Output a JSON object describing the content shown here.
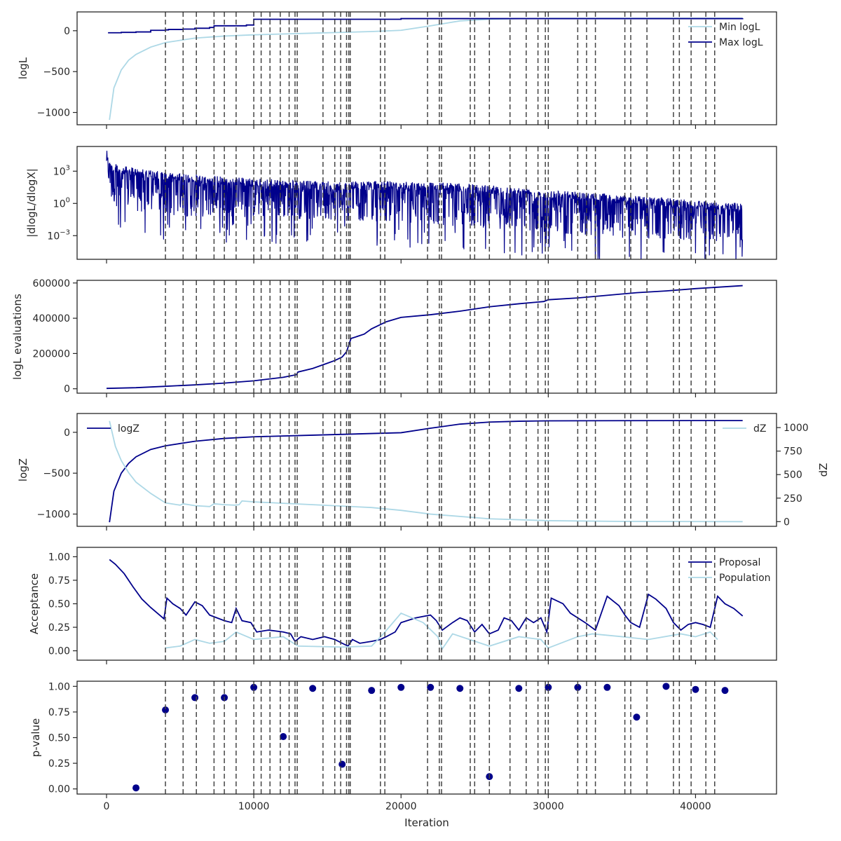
{
  "figure": {
    "xlabel": "Iteration"
  },
  "colors": {
    "dark": "#00008b",
    "light": "#add8e6",
    "dashed": "#444444",
    "axis": "#262626"
  },
  "chart_data": [
    {
      "type": "line",
      "panel": "logL",
      "ylabel": "logL",
      "xlim": [
        -2000,
        45500
      ],
      "ylim": [
        -1150,
        230
      ],
      "x_ticks": [
        0,
        10000,
        20000,
        30000,
        40000
      ],
      "y_ticks": [
        {
          "value": 0,
          "label": "0"
        },
        {
          "value": -500,
          "label": "−500"
        },
        {
          "value": -1000,
          "label": "−1000"
        }
      ],
      "legend": "top-right",
      "series": [
        {
          "name": "Min logL",
          "color": "light",
          "x": [
            200,
            500,
            1000,
            1500,
            2000,
            3000,
            4000,
            6000,
            8000,
            10000,
            14000,
            18000,
            20000,
            22000,
            24000,
            26000,
            28000,
            30000,
            35000,
            40000,
            43200
          ],
          "y": [
            -1090,
            -700,
            -480,
            -360,
            -290,
            -200,
            -145,
            -90,
            -65,
            -50,
            -30,
            -10,
            5,
            60,
            120,
            140,
            148,
            150,
            152,
            153,
            153
          ]
        },
        {
          "name": "Max logL",
          "color": "dark",
          "step": true,
          "x": [
            100,
            1000,
            2000,
            3000,
            4000,
            4200,
            5200,
            6000,
            7000,
            7300,
            9500,
            10000,
            20000,
            43200
          ],
          "y": [
            -25,
            -20,
            -15,
            5,
            10,
            15,
            20,
            30,
            40,
            60,
            70,
            140,
            148,
            153
          ]
        }
      ]
    },
    {
      "type": "line",
      "panel": "dlogL",
      "ylabel": "|dlogL/dlogX|",
      "yscale": "log",
      "xlim": [
        -2000,
        45500
      ],
      "ylim": [
        -5.2,
        5.3
      ],
      "x_ticks": [
        0,
        10000,
        20000,
        30000,
        40000
      ],
      "y_ticks": [
        {
          "value": 3,
          "label": "10",
          "exp": "3"
        },
        {
          "value": 0,
          "label": "10",
          "exp": "0"
        },
        {
          "value": -3,
          "label": "10",
          "exp": "−3"
        }
      ],
      "series": [
        {
          "name": "",
          "color": "dark",
          "noisy": true,
          "x": [
            0,
            300,
            1000,
            2000,
            4000,
            8000,
            12000,
            16000,
            19000,
            20000,
            22000,
            26000,
            30000,
            34000,
            38000,
            43200
          ],
          "y_upper": [
            5.0,
            3.8,
            3.5,
            3.3,
            2.9,
            2.5,
            2.2,
            2.0,
            2.1,
            2.1,
            2.0,
            1.7,
            1.3,
            0.9,
            0.5,
            0.0
          ],
          "y_lower": [
            3.5,
            0.0,
            -0.5,
            -0.8,
            -1.2,
            -1.3,
            -1.4,
            -1.6,
            -1.7,
            -1.8,
            -2.0,
            -2.3,
            -2.7,
            -3.1,
            -3.5,
            -3.5
          ]
        }
      ]
    },
    {
      "type": "line",
      "panel": "evaluations",
      "ylabel": "logL evaluations",
      "xlim": [
        -2000,
        45500
      ],
      "ylim": [
        -25000,
        615000
      ],
      "x_ticks": [
        0,
        10000,
        20000,
        30000,
        40000
      ],
      "y_ticks": [
        {
          "value": 600000,
          "label": "600000"
        },
        {
          "value": 400000,
          "label": "400000"
        },
        {
          "value": 200000,
          "label": "200000"
        },
        {
          "value": 0,
          "label": "0"
        }
      ],
      "series": [
        {
          "name": "",
          "color": "dark",
          "x": [
            0,
            2000,
            4000,
            6000,
            8000,
            10000,
            12000,
            12900,
            13000,
            14000,
            15000,
            15500,
            16000,
            16300,
            16500,
            16600,
            17500,
            18000,
            19000,
            20000,
            22000,
            24000,
            26000,
            28000,
            29700,
            30000,
            32000,
            34000,
            36000,
            38000,
            40000,
            43200
          ],
          "y": [
            2000,
            6000,
            14000,
            22000,
            32000,
            45000,
            65000,
            80000,
            95000,
            115000,
            145000,
            160000,
            180000,
            210000,
            260000,
            285000,
            310000,
            340000,
            380000,
            405000,
            420000,
            440000,
            465000,
            482000,
            495000,
            505000,
            515000,
            530000,
            545000,
            555000,
            568000,
            585000
          ]
        }
      ]
    },
    {
      "type": "line",
      "panel": "logZ",
      "ylabel": "logZ",
      "ylabel_right": "dZ",
      "xlim": [
        -2000,
        45500
      ],
      "ylim": [
        -1150,
        230
      ],
      "ylim_right": [
        -50,
        1150
      ],
      "x_ticks": [
        0,
        10000,
        20000,
        30000,
        40000
      ],
      "y_ticks": [
        {
          "value": 0,
          "label": "0"
        },
        {
          "value": -500,
          "label": "−500"
        },
        {
          "value": -1000,
          "label": "−1000"
        }
      ],
      "y_ticks_right": [
        {
          "value": 1000,
          "label": "1000"
        },
        {
          "value": 750,
          "label": "750"
        },
        {
          "value": 500,
          "label": "500"
        },
        {
          "value": 250,
          "label": "250"
        },
        {
          "value": 0,
          "label": "0"
        }
      ],
      "series": [
        {
          "name": "logZ",
          "color": "dark",
          "axis": "left",
          "legend": "top-left",
          "x": [
            200,
            500,
            1000,
            1500,
            2000,
            3000,
            4000,
            6000,
            8000,
            10000,
            14000,
            18000,
            20000,
            22000,
            24000,
            26000,
            28000,
            30000,
            35000,
            40000,
            43200
          ],
          "y": [
            -1100,
            -720,
            -500,
            -380,
            -300,
            -210,
            -165,
            -110,
            -75,
            -55,
            -35,
            -15,
            -5,
            50,
            100,
            125,
            135,
            140,
            142,
            143,
            143
          ]
        },
        {
          "name": "dZ",
          "color": "light",
          "axis": "right",
          "legend": "top-right",
          "x": [
            200,
            600,
            1000,
            1500,
            2000,
            3000,
            4000,
            5000,
            5200,
            6000,
            7000,
            7300,
            8000,
            8700,
            9000,
            9200,
            10000,
            14000,
            18000,
            20000,
            22000,
            26000,
            30000,
            35000,
            43200
          ],
          "y": [
            1070,
            800,
            650,
            520,
            420,
            300,
            200,
            175,
            190,
            170,
            160,
            190,
            180,
            175,
            180,
            220,
            210,
            180,
            150,
            120,
            80,
            30,
            10,
            2,
            0
          ]
        }
      ]
    },
    {
      "type": "line",
      "panel": "acceptance",
      "ylabel": "Acceptance",
      "xlim": [
        -2000,
        45500
      ],
      "ylim": [
        -0.1,
        1.1
      ],
      "x_ticks": [
        0,
        10000,
        20000,
        30000,
        40000
      ],
      "y_ticks": [
        {
          "value": 1.0,
          "label": "1.00"
        },
        {
          "value": 0.75,
          "label": "0.75"
        },
        {
          "value": 0.5,
          "label": "0.50"
        },
        {
          "value": 0.25,
          "label": "0.25"
        },
        {
          "value": 0.0,
          "label": "0.00"
        }
      ],
      "legend": "top-right",
      "series": [
        {
          "name": "Proposal",
          "color": "dark",
          "x": [
            200,
            600,
            1200,
            1800,
            2400,
            3000,
            3600,
            3900,
            4100,
            4500,
            5000,
            5400,
            6000,
            6500,
            7000,
            7500,
            8000,
            8500,
            8800,
            9200,
            9800,
            10200,
            11000,
            12000,
            12500,
            12800,
            13200,
            14000,
            14800,
            15500,
            16000,
            16400,
            16700,
            17200,
            18000,
            18600,
            19000,
            19600,
            20000,
            21000,
            22000,
            22400,
            22800,
            23500,
            24000,
            24500,
            25000,
            25500,
            26000,
            26600,
            27000,
            27500,
            28000,
            28500,
            29000,
            29500,
            29900,
            30200,
            31000,
            31500,
            32000,
            32500,
            33200,
            34000,
            34800,
            35200,
            35600,
            36200,
            36800,
            37300,
            38000,
            38500,
            39000,
            39500,
            40000,
            40500,
            41000,
            41500,
            42000,
            42600,
            43200
          ],
          "y": [
            0.97,
            0.92,
            0.82,
            0.68,
            0.55,
            0.46,
            0.38,
            0.34,
            0.56,
            0.5,
            0.45,
            0.38,
            0.52,
            0.48,
            0.38,
            0.35,
            0.32,
            0.3,
            0.45,
            0.32,
            0.3,
            0.2,
            0.22,
            0.2,
            0.18,
            0.1,
            0.15,
            0.12,
            0.15,
            0.12,
            0.08,
            0.05,
            0.12,
            0.08,
            0.1,
            0.12,
            0.15,
            0.2,
            0.3,
            0.35,
            0.38,
            0.32,
            0.22,
            0.3,
            0.35,
            0.32,
            0.2,
            0.28,
            0.18,
            0.22,
            0.35,
            0.32,
            0.22,
            0.35,
            0.3,
            0.35,
            0.2,
            0.56,
            0.5,
            0.4,
            0.35,
            0.3,
            0.22,
            0.58,
            0.48,
            0.38,
            0.3,
            0.25,
            0.6,
            0.55,
            0.45,
            0.3,
            0.22,
            0.28,
            0.3,
            0.28,
            0.25,
            0.58,
            0.5,
            0.45,
            0.37
          ]
        },
        {
          "name": "Population",
          "color": "light",
          "x": [
            4000,
            5000,
            6000,
            7000,
            8000,
            8800,
            10000,
            12000,
            13000,
            16000,
            18000,
            18800,
            20000,
            21500,
            22500,
            22800,
            23500,
            26000,
            28000,
            29500,
            30000,
            32000,
            33000,
            35000,
            36800,
            39000,
            40000,
            41000,
            41500
          ],
          "y": [
            0.03,
            0.05,
            0.12,
            0.08,
            0.1,
            0.2,
            0.12,
            0.15,
            0.05,
            0.04,
            0.05,
            0.18,
            0.4,
            0.3,
            0.15,
            0.02,
            0.18,
            0.05,
            0.15,
            0.12,
            0.03,
            0.15,
            0.18,
            0.15,
            0.12,
            0.18,
            0.15,
            0.2,
            0.12
          ]
        }
      ]
    },
    {
      "type": "scatter",
      "panel": "p-value",
      "ylabel": "p-value",
      "xlim": [
        -2000,
        45500
      ],
      "ylim": [
        -0.05,
        1.05
      ],
      "x_ticks": [
        0,
        10000,
        20000,
        30000,
        40000
      ],
      "y_ticks": [
        {
          "value": 1.0,
          "label": "1.00"
        },
        {
          "value": 0.75,
          "label": "0.75"
        },
        {
          "value": 0.5,
          "label": "0.50"
        },
        {
          "value": 0.25,
          "label": "0.25"
        },
        {
          "value": 0.0,
          "label": "0.00"
        }
      ],
      "series": [
        {
          "name": "",
          "color": "dark",
          "x": [
            2000,
            4000,
            6000,
            8000,
            10000,
            12000,
            14000,
            16000,
            18000,
            20000,
            22000,
            24000,
            26000,
            28000,
            30000,
            32000,
            34000,
            36000,
            38000,
            40000,
            42000
          ],
          "y": [
            0.01,
            0.77,
            0.89,
            0.89,
            0.99,
            0.51,
            0.98,
            0.24,
            0.96,
            0.99,
            0.99,
            0.98,
            0.12,
            0.98,
            0.99,
            0.99,
            0.99,
            0.7,
            1.0,
            0.97,
            0.96
          ]
        }
      ]
    }
  ],
  "x_tick_labels": [
    "0",
    "10000",
    "20000",
    "30000",
    "40000"
  ],
  "vlines_x": [
    4000,
    5200,
    6100,
    7300,
    8000,
    8800,
    10000,
    10500,
    11100,
    11800,
    12400,
    12800,
    12950,
    14700,
    15500,
    15900,
    16300,
    16450,
    16550,
    18600,
    18900,
    21800,
    22600,
    22750,
    24700,
    25000,
    26000,
    27400,
    28500,
    29300,
    29800,
    30000,
    32000,
    32600,
    33200,
    35200,
    35600,
    36700,
    38500,
    38900,
    39700,
    40700,
    41300
  ]
}
